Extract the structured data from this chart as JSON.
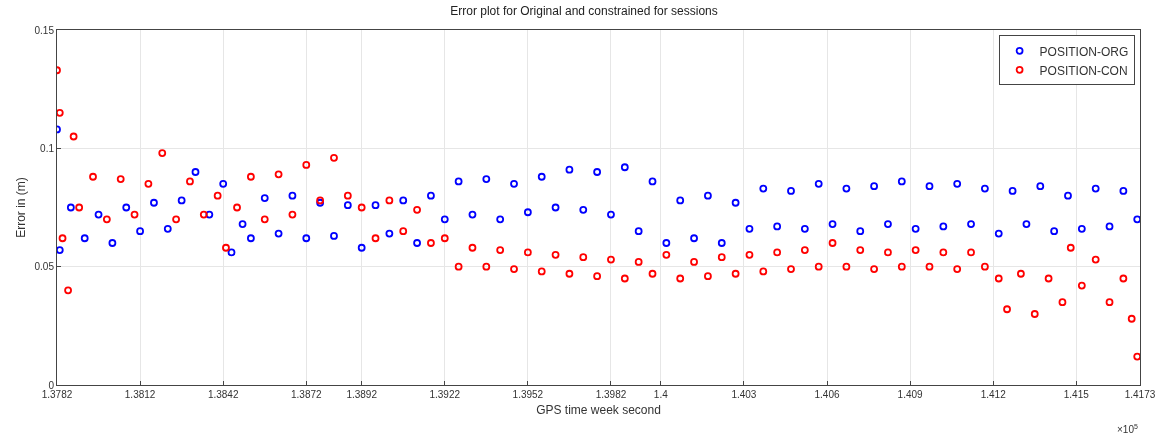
{
  "chart_data": {
    "type": "scatter",
    "title": "Error plot for Original and constrained for sessions",
    "xlabel": "GPS time week second",
    "ylabel": "Error in (m)",
    "annotations": [
      "×10$^{5}$"
    ],
    "xlim": [
      1.3782,
      1.4173
    ],
    "xticks": [
      1.3782,
      1.3812,
      1.3842,
      1.3872,
      1.3892,
      1.3922,
      1.3952,
      1.3982,
      1.4,
      1.403,
      1.406,
      1.409,
      1.412,
      1.415,
      1.4173
    ],
    "ylim": [
      0,
      0.15
    ],
    "yticks": [
      0,
      0.05,
      0.1,
      0.15
    ],
    "grid": true,
    "legend": "top right",
    "series": [
      {
        "name": "POSITION-ORG",
        "color": "#0000ff",
        "marker": "circle",
        "x": [
          1.3782,
          1.3783,
          1.3787,
          1.3792,
          1.3797,
          1.3802,
          1.3807,
          1.3812,
          1.3817,
          1.3822,
          1.3827,
          1.3832,
          1.3837,
          1.3842,
          1.3845,
          1.3849,
          1.3852,
          1.3857,
          1.3862,
          1.3867,
          1.3872,
          1.3877,
          1.3882,
          1.3887,
          1.3892,
          1.3897,
          1.3902,
          1.3907,
          1.3912,
          1.3917,
          1.3922,
          1.3927,
          1.3932,
          1.3937,
          1.3942,
          1.3947,
          1.3952,
          1.3957,
          1.3962,
          1.3967,
          1.3972,
          1.3977,
          1.3982,
          1.3987,
          1.3992,
          1.3997,
          1.4002,
          1.4007,
          1.4012,
          1.4017,
          1.4022,
          1.4027,
          1.4032,
          1.4037,
          1.4042,
          1.4047,
          1.4052,
          1.4057,
          1.4062,
          1.4067,
          1.4072,
          1.4077,
          1.4082,
          1.4087,
          1.4092,
          1.4097,
          1.4102,
          1.4107,
          1.4112,
          1.4117,
          1.4122,
          1.4127,
          1.4132,
          1.4137,
          1.4142,
          1.4147,
          1.4152,
          1.4157,
          1.4162,
          1.4167,
          1.4172
        ],
        "values": [
          0.108,
          0.057,
          0.075,
          0.062,
          0.072,
          0.06,
          0.075,
          0.065,
          0.077,
          0.066,
          0.078,
          0.09,
          0.072,
          0.085,
          0.056,
          0.068,
          0.062,
          0.079,
          0.064,
          0.08,
          0.062,
          0.077,
          0.063,
          0.076,
          0.058,
          0.076,
          0.064,
          0.078,
          0.06,
          0.08,
          0.07,
          0.086,
          0.072,
          0.087,
          0.07,
          0.085,
          0.073,
          0.088,
          0.075,
          0.091,
          0.074,
          0.09,
          0.072,
          0.092,
          0.065,
          0.086,
          0.06,
          0.078,
          0.062,
          0.08,
          0.06,
          0.077,
          0.066,
          0.083,
          0.067,
          0.082,
          0.066,
          0.085,
          0.068,
          0.083,
          0.065,
          0.084,
          0.068,
          0.086,
          0.066,
          0.084,
          0.067,
          0.085,
          0.068,
          0.083,
          0.064,
          0.082,
          0.068,
          0.084,
          0.065,
          0.08,
          0.066,
          0.083,
          0.067,
          0.082,
          0.07
        ]
      },
      {
        "name": "POSITION-CON",
        "color": "#ff0000",
        "marker": "circle",
        "x": [
          1.3782,
          1.3783,
          1.3784,
          1.3786,
          1.3788,
          1.379,
          1.3795,
          1.38,
          1.3805,
          1.381,
          1.3815,
          1.382,
          1.3825,
          1.383,
          1.3835,
          1.384,
          1.3843,
          1.3847,
          1.3852,
          1.3857,
          1.3862,
          1.3867,
          1.3872,
          1.3877,
          1.3882,
          1.3887,
          1.3892,
          1.3897,
          1.3902,
          1.3907,
          1.3912,
          1.3917,
          1.3922,
          1.3927,
          1.3932,
          1.3937,
          1.3942,
          1.3947,
          1.3952,
          1.3957,
          1.3962,
          1.3967,
          1.3972,
          1.3977,
          1.3982,
          1.3987,
          1.3992,
          1.3997,
          1.4002,
          1.4007,
          1.4012,
          1.4017,
          1.4022,
          1.4027,
          1.4032,
          1.4037,
          1.4042,
          1.4047,
          1.4052,
          1.4057,
          1.4062,
          1.4067,
          1.4072,
          1.4077,
          1.4082,
          1.4087,
          1.4092,
          1.4097,
          1.4102,
          1.4107,
          1.4112,
          1.4117,
          1.4122,
          1.4125,
          1.413,
          1.4135,
          1.414,
          1.4145,
          1.4148,
          1.4152,
          1.4157,
          1.4162,
          1.4167,
          1.417,
          1.4172
        ],
        "values": [
          0.133,
          0.115,
          0.062,
          0.04,
          0.105,
          0.075,
          0.088,
          0.07,
          0.087,
          0.072,
          0.085,
          0.098,
          0.07,
          0.086,
          0.072,
          0.08,
          0.058,
          0.075,
          0.088,
          0.07,
          0.089,
          0.072,
          0.093,
          0.078,
          0.096,
          0.08,
          0.075,
          0.062,
          0.078,
          0.065,
          0.074,
          0.06,
          0.062,
          0.05,
          0.058,
          0.05,
          0.057,
          0.049,
          0.056,
          0.048,
          0.055,
          0.047,
          0.054,
          0.046,
          0.053,
          0.045,
          0.052,
          0.047,
          0.055,
          0.045,
          0.052,
          0.046,
          0.054,
          0.047,
          0.055,
          0.048,
          0.056,
          0.049,
          0.057,
          0.05,
          0.06,
          0.05,
          0.057,
          0.049,
          0.056,
          0.05,
          0.057,
          0.05,
          0.056,
          0.049,
          0.056,
          0.05,
          0.045,
          0.032,
          0.047,
          0.03,
          0.045,
          0.035,
          0.058,
          0.042,
          0.053,
          0.035,
          0.045,
          0.028,
          0.012
        ]
      }
    ]
  }
}
